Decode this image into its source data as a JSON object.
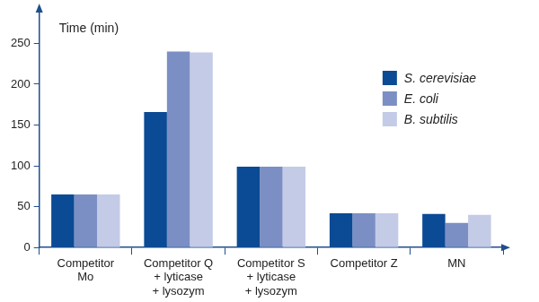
{
  "chart_data": {
    "type": "bar",
    "y_label": "Time (min)",
    "categories": [
      "Competitor\nMo",
      "Competitor Q\n+ lyticase\n+ lysozym",
      "Competitor S\n+ lyticase\n+ lysozym",
      "Competitor Z",
      "MN"
    ],
    "series": [
      {
        "name": "S. cerevisiae",
        "color": "#0b4a94",
        "values": [
          65,
          166,
          99,
          42,
          41
        ]
      },
      {
        "name": "E. coli",
        "color": "#7b8fc5",
        "values": [
          65,
          240,
          99,
          42,
          30
        ]
      },
      {
        "name": "B. subtilis",
        "color": "#c3cbe7",
        "values": [
          65,
          239,
          99,
          42,
          40
        ]
      }
    ],
    "ylim": [
      0,
      290
    ],
    "yticks": [
      0,
      50,
      100,
      150,
      200,
      250
    ],
    "grid": false,
    "legend": "upper right"
  }
}
